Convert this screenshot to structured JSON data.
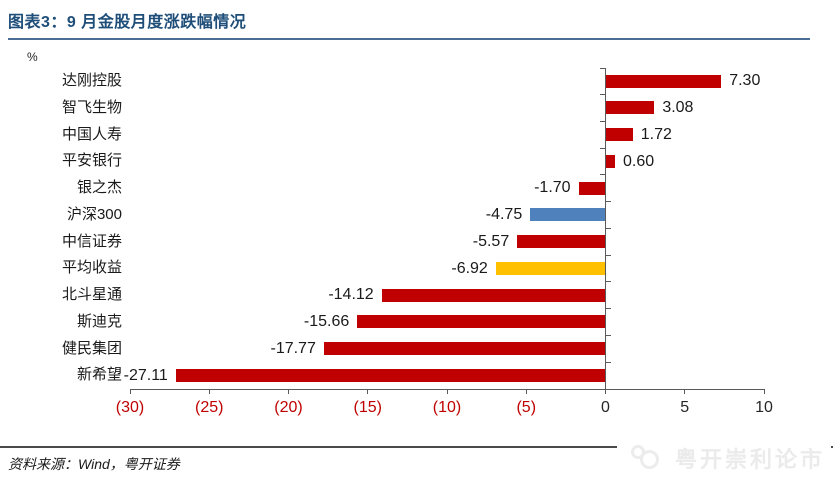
{
  "header": {
    "title": "图表3：9 月金股月度涨跌幅情况"
  },
  "chart_data": {
    "type": "bar",
    "orientation": "horizontal",
    "title": "图表3：9 月金股月度涨跌幅情况",
    "unit_label": "%",
    "categories": [
      "达刚控股",
      "智飞生物",
      "中国人寿",
      "平安银行",
      "银之杰",
      "沪深300",
      "中信证券",
      "平均收益",
      "北斗星通",
      "斯迪克",
      "健民集团",
      "新希望"
    ],
    "values": [
      7.3,
      3.08,
      1.72,
      0.6,
      -1.7,
      -4.75,
      -5.57,
      -6.92,
      -14.12,
      -15.66,
      -17.77,
      -27.11
    ],
    "value_labels": [
      "7.30",
      "3.08",
      "1.72",
      "0.60",
      "-1.70",
      "-4.75",
      "-5.57",
      "-6.92",
      "-14.12",
      "-15.66",
      "-17.77",
      "-27.11"
    ],
    "bar_colors": [
      "#C00000",
      "#C00000",
      "#C00000",
      "#C00000",
      "#C00000",
      "#4F81BD",
      "#C00000",
      "#FFC000",
      "#C00000",
      "#C00000",
      "#C00000",
      "#C00000"
    ],
    "xlim": [
      -30,
      10
    ],
    "x_ticks": [
      {
        "value": -30,
        "label": "(30)",
        "color": "#C00000"
      },
      {
        "value": -25,
        "label": "(25)",
        "color": "#C00000"
      },
      {
        "value": -20,
        "label": "(20)",
        "color": "#C00000"
      },
      {
        "value": -15,
        "label": "(15)",
        "color": "#C00000"
      },
      {
        "value": -10,
        "label": "(10)",
        "color": "#C00000"
      },
      {
        "value": -5,
        "label": "(5)",
        "color": "#C00000"
      },
      {
        "value": 0,
        "label": "0",
        "color": "#262626"
      },
      {
        "value": 5,
        "label": "5",
        "color": "#262626"
      },
      {
        "value": 10,
        "label": "10",
        "color": "#262626"
      }
    ],
    "grid": false,
    "legend": false
  },
  "colors": {
    "bar_default": "#C00000",
    "bar_benchmark": "#4F81BD",
    "bar_average": "#FFC000",
    "axis": "#595959",
    "title": "#1F4E79",
    "negative_tick_label": "#C00000"
  },
  "footer": {
    "source": "资料来源：Wind，粤开证券",
    "watermark": "粤开崇利论市"
  }
}
